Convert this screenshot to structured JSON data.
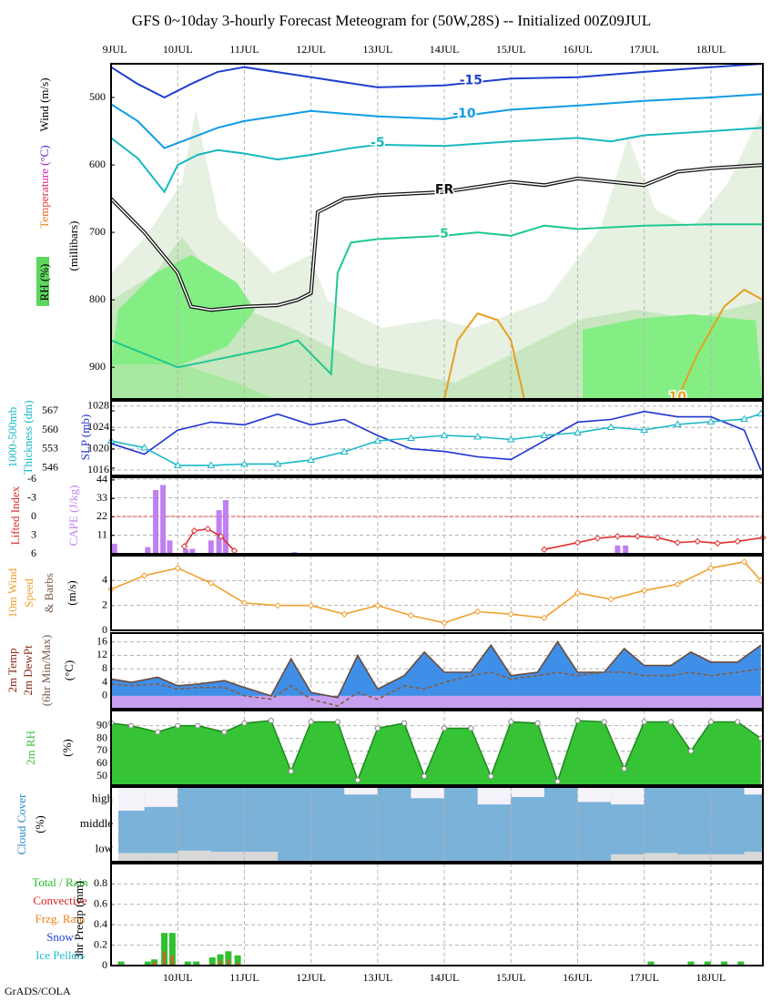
{
  "title": "GFS 0~10day 3-hourly Forecast Meteogram for (50W,28S) -- Initialized 00Z09JUL",
  "credit": "GrADS/COLA",
  "chart_data": [
    {
      "type": "contour",
      "labels": [
        {
          "text": "Wind (m/s)",
          "color": "#000000"
        },
        {
          "text": "Temperature (°C)",
          "colors": [
            "#f0a020",
            "#e03030",
            "#d020c0",
            "#4020d0"
          ]
        },
        {
          "text": "RH (%)",
          "color": "#000000"
        },
        {
          "text": "(millibars)",
          "color": "#000000"
        }
      ],
      "xlim": [
        0,
        9.78
      ],
      "xticks": [
        {
          "value": 0,
          "label": "9JUL"
        },
        {
          "value": 1,
          "label": "10JUL"
        },
        {
          "value": 2,
          "label": "11JUL"
        },
        {
          "value": 3,
          "label": "12JUL"
        },
        {
          "value": 4,
          "label": "13JUL"
        },
        {
          "value": 5,
          "label": "14JUL"
        },
        {
          "value": 6,
          "label": "15JUL"
        },
        {
          "value": 7,
          "label": "16JUL"
        },
        {
          "value": 8,
          "label": "17JUL"
        },
        {
          "value": 9,
          "label": "18JUL"
        }
      ],
      "ylim": [
        947,
        450
      ],
      "yticks": [
        500,
        600,
        700,
        800,
        900
      ],
      "grid": false,
      "contours": [
        {
          "label": "-15",
          "color": "#1f3fd0",
          "x": [
            0,
            0.4,
            0.8,
            1.2,
            1.6,
            2,
            3,
            4,
            5,
            5.4,
            6,
            7,
            8,
            9,
            9.78
          ],
          "values": [
            455,
            480,
            500,
            480,
            462,
            455,
            470,
            485,
            482,
            478,
            472,
            470,
            462,
            455,
            450
          ]
        },
        {
          "label": "-10",
          "color": "#109ce6",
          "x": [
            0,
            0.4,
            0.8,
            1.2,
            1.6,
            2,
            3,
            4,
            5,
            5.3,
            6,
            7,
            8,
            9,
            9.78
          ],
          "values": [
            510,
            535,
            575,
            560,
            545,
            535,
            520,
            528,
            532,
            527,
            518,
            512,
            505,
            500,
            495
          ]
        },
        {
          "label": "-5",
          "color": "#18b8c0",
          "x": [
            0,
            0.4,
            0.8,
            1,
            1.3,
            1.6,
            2,
            2.5,
            3,
            3.3,
            3.6,
            4,
            5,
            6,
            7,
            7.5,
            8,
            9,
            9.78
          ],
          "values": [
            560,
            590,
            640,
            600,
            585,
            578,
            583,
            592,
            585,
            580,
            575,
            570,
            572,
            565,
            560,
            565,
            556,
            550,
            545
          ]
        },
        {
          "label": "FR",
          "color": "#111111",
          "x": [
            0,
            0.5,
            1,
            1.2,
            1.5,
            2,
            2.5,
            2.8,
            3,
            3.1,
            3.5,
            4,
            5,
            6,
            6.5,
            7,
            8,
            8.5,
            9,
            9.78
          ],
          "values": [
            650,
            700,
            760,
            810,
            815,
            810,
            808,
            800,
            790,
            670,
            650,
            645,
            640,
            625,
            630,
            620,
            630,
            610,
            605,
            600
          ]
        },
        {
          "label": "5",
          "color": "#20c890",
          "x": [
            0,
            0.5,
            1,
            1.5,
            2,
            2.5,
            2.8,
            3,
            3.3,
            3.4,
            3.6,
            4,
            5,
            5.5,
            6,
            6.5,
            7,
            8,
            9,
            9.78
          ],
          "values": [
            860,
            880,
            900,
            890,
            880,
            870,
            860,
            880,
            910,
            760,
            715,
            710,
            705,
            700,
            705,
            690,
            695,
            690,
            688,
            688
          ]
        },
        {
          "label": "10",
          "color": "#e8a020",
          "x": [
            5,
            5.2,
            5.5,
            5.8,
            6,
            6.2,
            7,
            8.5,
            8.8,
            9.2,
            9.5,
            9.78
          ],
          "values": [
            947,
            860,
            820,
            830,
            860,
            947,
            null,
            947,
            880,
            810,
            785,
            800
          ]
        }
      ]
    },
    {
      "type": "line",
      "labels": [
        {
          "text": "1000-500mb",
          "color": "#18b8c8"
        },
        {
          "text": "Thickness (dm)",
          "color": "#18b8c8"
        },
        {
          "text": "SLP (mb)",
          "color": "#1e32d0"
        }
      ],
      "x": [
        0,
        0.5,
        1,
        1.5,
        2,
        2.5,
        3,
        3.5,
        4,
        4.5,
        5,
        5.5,
        6,
        6.5,
        7,
        7.5,
        8,
        8.5,
        9,
        9.5,
        9.75
      ],
      "ylim": [
        1015,
        1029
      ],
      "yticks": [
        1016,
        1020,
        1024,
        1028
      ],
      "y2lim": [
        543.3,
        570.7
      ],
      "y2ticks": [
        546,
        553,
        560,
        567
      ],
      "grid": true,
      "series": [
        {
          "color": "#1e32d0",
          "values": [
            1021,
            1019,
            1023.5,
            1025,
            1024.5,
            1026.5,
            1024.5,
            1025.5,
            1022.5,
            1020,
            1019.5,
            1018.5,
            1018,
            1021.5,
            1025,
            1025.5,
            1027,
            1026,
            1026,
            1023.5,
            1016
          ]
        },
        {
          "color": "#18b8c8",
          "axis": "y2",
          "marker": "triangle",
          "values": [
            556,
            553.5,
            547,
            547,
            547.5,
            547.5,
            549,
            552,
            556,
            557,
            558,
            557.5,
            556.5,
            558,
            559,
            561,
            560,
            562,
            563,
            564,
            566
          ]
        }
      ]
    },
    {
      "type": "line",
      "labels": [
        {
          "text": "Lifted Index",
          "color": "#e03030"
        },
        {
          "text": "CAPE (J/kg)",
          "color": "#c080f0"
        }
      ],
      "ylim": [
        6,
        -6.3
      ],
      "yticks": [
        -6,
        -3,
        0,
        3,
        6
      ],
      "y2lim": [
        0,
        45.6
      ],
      "y2ticks": [
        11,
        22,
        33,
        44
      ],
      "grid": true,
      "ref_line": {
        "value": 0,
        "color": "#e04040"
      },
      "series": [
        {
          "color": "#c080f0",
          "axis": "y2",
          "style": "bar",
          "x": [
            0.05,
            0.55,
            0.67,
            0.78,
            0.88,
            1.12,
            1.22,
            1.5,
            1.62,
            1.72,
            2.75,
            7.6,
            7.72
          ],
          "values": [
            6,
            4,
            38,
            41,
            8,
            3,
            3,
            8,
            26,
            32,
            1,
            5,
            5
          ]
        },
        {
          "color": "#e03030",
          "marker": "diamond",
          "x": [
            1.1,
            1.25,
            1.45,
            1.65,
            1.85,
            5,
            6.5,
            7.0,
            7.3,
            7.6,
            7.9,
            8.2,
            8.5,
            8.8,
            9.1,
            9.4,
            9.78
          ],
          "values": [
            4.8,
            2.3,
            2.0,
            3.2,
            5.5,
            null,
            5.3,
            4.2,
            3.5,
            3.2,
            3.2,
            3.4,
            4.2,
            4.0,
            4.3,
            4.0,
            3.4
          ]
        }
      ]
    },
    {
      "type": "line",
      "labels": [
        {
          "text": "10m Wind",
          "color": "#f0a030"
        },
        {
          "text": "Speed",
          "color": "#f0a030"
        },
        {
          "text": "& Barbs",
          "color": "#7a5a48"
        },
        {
          "text": "(m/s)",
          "color": "#000000"
        }
      ],
      "x": [
        0,
        0.5,
        1,
        1.5,
        2,
        2.5,
        3,
        3.5,
        4,
        4.5,
        5,
        5.5,
        6,
        6.5,
        7,
        7.5,
        8,
        8.5,
        9,
        9.5,
        9.75
      ],
      "ylim": [
        0,
        6
      ],
      "yticks": [
        0,
        2,
        4
      ],
      "grid": true,
      "series": [
        {
          "color": "#f0a030",
          "marker": "diamond",
          "values": [
            3.3,
            4.4,
            5.0,
            3.8,
            2.2,
            2.0,
            2.0,
            1.3,
            2.0,
            1.2,
            0.6,
            1.5,
            1.3,
            1.0,
            3.0,
            2.5,
            3.2,
            3.7,
            5.0,
            5.5,
            4.0
          ]
        }
      ]
    },
    {
      "type": "line",
      "labels": [
        {
          "text": "2m Temp",
          "color": "#8b2c1c"
        },
        {
          "text": "2m DewPt",
          "color": "#8b2c1c"
        },
        {
          "text": "(6hr Min/Max)",
          "color": "#7a5a48"
        },
        {
          "text": "(°C)",
          "color": "#000000"
        }
      ],
      "x": [
        0,
        0.3,
        0.7,
        1.0,
        1.3,
        1.7,
        2.0,
        2.4,
        2.7,
        3.0,
        3.4,
        3.7,
        4.0,
        4.4,
        4.7,
        5.0,
        5.4,
        5.7,
        6.0,
        6.4,
        6.7,
        7.0,
        7.4,
        7.7,
        8.0,
        8.4,
        8.7,
        9.0,
        9.4,
        9.75
      ],
      "ylim": [
        -3.8,
        18.6
      ],
      "yticks": [
        0,
        4,
        8,
        12,
        16
      ],
      "grid": true,
      "negative_fill": "#c8a0f0",
      "series": [
        {
          "color": "#6b4a3a",
          "fill": "#3f8fe8",
          "values": [
            5,
            4,
            5.5,
            3,
            3.5,
            4.5,
            2.5,
            0,
            11,
            1,
            -0.5,
            12,
            2,
            6,
            13,
            7,
            7,
            15,
            6,
            7,
            16,
            7,
            7,
            14,
            9,
            9,
            13,
            10,
            10,
            15
          ]
        },
        {
          "color": "#8b5a3a",
          "dash": "4 3",
          "values": [
            3.5,
            3,
            3.5,
            2,
            2.5,
            2.5,
            0,
            -1,
            3,
            -1,
            -3,
            1,
            -1,
            3,
            2,
            4,
            6,
            7,
            5,
            6,
            7,
            6,
            7,
            7,
            6,
            6,
            7,
            6,
            7,
            8
          ]
        }
      ]
    },
    {
      "type": "line",
      "labels": [
        {
          "text": "2m RH",
          "color": "#40c040"
        },
        {
          "text": "(%)",
          "color": "#000000"
        }
      ],
      "x": [
        0,
        0.3,
        0.7,
        1.0,
        1.3,
        1.7,
        2.0,
        2.4,
        2.7,
        3.0,
        3.4,
        3.7,
        4.0,
        4.4,
        4.7,
        5.0,
        5.4,
        5.7,
        6.0,
        6.4,
        6.7,
        7.0,
        7.4,
        7.7,
        8.0,
        8.4,
        8.7,
        9.0,
        9.4,
        9.75
      ],
      "ylim": [
        43,
        102
      ],
      "yticks": [
        50,
        60,
        70,
        80,
        90
      ],
      "grid": true,
      "series": [
        {
          "color": "#208a20",
          "fill": "#36c436",
          "marker": "circle",
          "values": [
            92,
            90,
            85,
            90,
            90,
            85,
            92,
            94,
            54,
            93,
            93,
            47,
            88,
            92,
            50,
            88,
            88,
            50,
            93,
            92,
            46,
            94,
            93,
            56,
            93,
            93,
            70,
            93,
            93,
            80
          ]
        }
      ]
    },
    {
      "type": "cloud",
      "labels": [
        {
          "text": "Cloud Cover",
          "color": "#2a8acb"
        },
        {
          "text": "(%)",
          "color": "#000000"
        }
      ],
      "categories": [
        "high",
        "middle",
        "low"
      ],
      "x": [
        0,
        0.5,
        1,
        1.5,
        2,
        2.5,
        3,
        3.5,
        4,
        4.5,
        5,
        5.5,
        6,
        6.5,
        7,
        7.5,
        8,
        8.5,
        9,
        9.5
      ],
      "background": "#7bb2d9",
      "series": [
        {
          "color": "#f6f2fa",
          "values": [
            95,
            80,
            0,
            0,
            0,
            0,
            0,
            30,
            0,
            45,
            0,
            70,
            40,
            0,
            60,
            70,
            0,
            0,
            0,
            30
          ]
        },
        {
          "color": "#f6f2fa",
          "values": [
            0,
            0,
            0,
            0,
            0,
            0,
            0,
            0,
            0,
            0,
            0,
            0,
            0,
            0,
            0,
            0,
            0,
            0,
            0,
            0
          ]
        },
        {
          "color": "#d8d8d8",
          "values": [
            35,
            35,
            45,
            40,
            40,
            0,
            0,
            0,
            0,
            0,
            0,
            0,
            0,
            0,
            0,
            30,
            35,
            30,
            30,
            40
          ]
        }
      ]
    },
    {
      "type": "bar",
      "labels": [
        {
          "text": "Total / Rain",
          "color": "#20c020"
        },
        {
          "text": "Convective",
          "color": "#e02020"
        },
        {
          "text": "Frzg. Rain",
          "color": "#f08020"
        },
        {
          "text": "Snow",
          "color": "#2040e0"
        },
        {
          "text": "Ice Pellets",
          "color": "#20c0d0"
        },
        {
          "text": "3hr Precip (mm)",
          "color": "#000000"
        }
      ],
      "xlim": [
        0,
        9.78
      ],
      "xticks": [
        {
          "value": 1,
          "label": "10JUL"
        },
        {
          "value": 2,
          "label": "11JUL"
        },
        {
          "value": 3,
          "label": "12JUL"
        },
        {
          "value": 4,
          "label": "13JUL"
        },
        {
          "value": 5,
          "label": "14JUL"
        },
        {
          "value": 6,
          "label": "15JUL"
        },
        {
          "value": 7,
          "label": "16JUL"
        },
        {
          "value": 8,
          "label": "17JUL"
        },
        {
          "value": 9,
          "label": "18JUL"
        }
      ],
      "x": [
        0.15,
        0.55,
        0.65,
        0.8,
        0.92,
        1.15,
        1.28,
        1.52,
        1.64,
        1.76,
        1.9,
        8.1,
        8.7,
        8.95,
        9.2,
        9.45
      ],
      "ylim": [
        0,
        1
      ],
      "yticks": [
        0,
        0.2,
        0.4,
        0.6,
        0.8
      ],
      "grid": true,
      "series": [
        {
          "color": "#30c030",
          "values": [
            0.04,
            0.04,
            0.06,
            0.32,
            0.32,
            0.04,
            0.04,
            0.08,
            0.11,
            0.14,
            0.1,
            0.04,
            0.04,
            0.04,
            0.04,
            0.04
          ]
        },
        {
          "color": "#c86428",
          "values": [
            0,
            0,
            0.04,
            0.14,
            0.1,
            0,
            0,
            0.02,
            0.05,
            0.06,
            0.03,
            0,
            0,
            0,
            0,
            0
          ]
        }
      ]
    }
  ]
}
